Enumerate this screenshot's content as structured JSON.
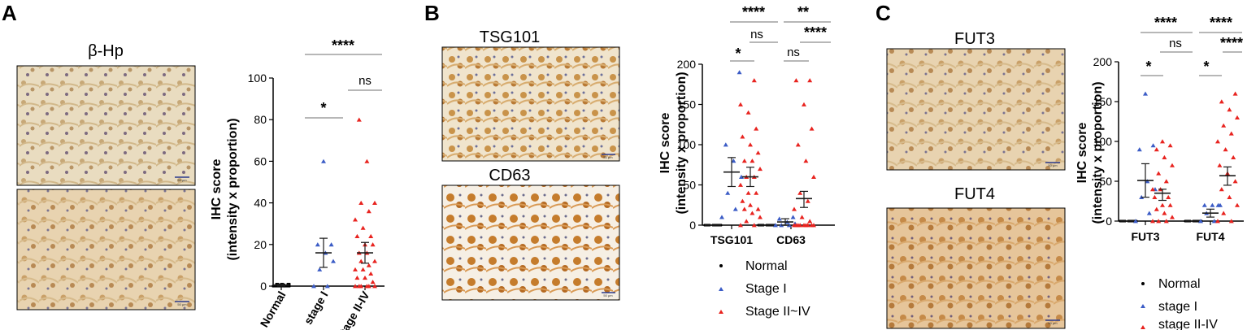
{
  "colors": {
    "normal": "#000000",
    "stage1": "#3b5cc6",
    "stage2": "#e8231f",
    "grid": "#8c8c8c"
  },
  "panels": {
    "A": {
      "letter": "A",
      "images": [
        {
          "title": "β-Hp",
          "scale": "50 μm"
        },
        {
          "title": "",
          "scale": "50 μm"
        }
      ],
      "sig": [
        {
          "label": "*"
        },
        {
          "label": "ns"
        },
        {
          "label": "****"
        }
      ]
    },
    "B": {
      "letter": "B",
      "images": [
        {
          "title": "TSG101",
          "scale": "50 μm"
        },
        {
          "title": "CD63",
          "scale": "50 μm"
        }
      ],
      "legend": [
        "Normal",
        "Stage I",
        "Stage II~IV"
      ],
      "sig": [
        {
          "label": "*"
        },
        {
          "label": "ns"
        },
        {
          "label": "****"
        },
        {
          "label": "ns"
        },
        {
          "label": "****"
        },
        {
          "label": "**"
        }
      ]
    },
    "C": {
      "letter": "C",
      "images": [
        {
          "title": "FUT3",
          "scale": "50 μm"
        },
        {
          "title": "FUT4",
          "scale": "50 μm"
        }
      ],
      "legend": [
        "Normal",
        "stage I",
        "stage II-IV"
      ],
      "sig": [
        {
          "label": "*"
        },
        {
          "label": "ns"
        },
        {
          "label": "****"
        },
        {
          "label": "*"
        },
        {
          "label": "****"
        },
        {
          "label": "****"
        }
      ]
    }
  },
  "chart_data": [
    {
      "type": "scatter",
      "panel": "A",
      "ylabel_line1": "IHC score",
      "ylabel_line2": "(intensity x proportion)",
      "ylim": [
        0,
        100
      ],
      "yticks": [
        0,
        20,
        40,
        60,
        80,
        100
      ],
      "categories": [
        "Normal",
        "stage I",
        "stage II-IV"
      ],
      "series": [
        {
          "category": "Normal",
          "marker": "circle",
          "color": "#000000",
          "mean": 0.5,
          "error": [
            0,
            1
          ],
          "values": [
            0,
            0,
            0,
            0,
            0,
            0,
            0,
            0,
            0,
            0,
            0,
            0,
            0,
            0,
            0,
            0,
            0,
            0,
            0,
            0,
            0,
            0,
            0,
            0,
            1,
            1,
            1,
            1,
            1,
            1
          ]
        },
        {
          "category": "stage I",
          "marker": "triangle",
          "color": "#3b5cc6",
          "mean": 16,
          "error": [
            9,
            23
          ],
          "values": [
            0,
            0,
            8,
            12,
            16,
            20,
            20,
            60
          ]
        },
        {
          "category": "stage II-IV",
          "marker": "triangle",
          "color": "#e8231f",
          "mean": 16,
          "error": [
            11,
            21
          ],
          "values": [
            0,
            0,
            0,
            0,
            0,
            0,
            2,
            4,
            4,
            6,
            8,
            8,
            10,
            12,
            12,
            16,
            16,
            20,
            20,
            24,
            24,
            28,
            32,
            36,
            40,
            40,
            60,
            80
          ]
        }
      ]
    },
    {
      "type": "scatter",
      "panel": "B",
      "ylabel_line1": "IHC score",
      "ylabel_line2": "(intensity x proportion)",
      "ylim": [
        0,
        200
      ],
      "yticks": [
        0,
        50,
        100,
        150,
        200
      ],
      "categories": [
        "TSG101",
        "CD63"
      ],
      "series": [
        {
          "name": "Normal",
          "group": "TSG101",
          "marker": "circle",
          "color": "#000000",
          "mean": 0,
          "error": [
            0,
            0
          ],
          "values": [
            0,
            0,
            0,
            0,
            0,
            0,
            0,
            0,
            0,
            0
          ]
        },
        {
          "name": "Stage I",
          "group": "TSG101",
          "marker": "triangle",
          "color": "#3b5cc6",
          "mean": 66,
          "error": [
            48,
            84
          ],
          "values": [
            10,
            20,
            40,
            60,
            80,
            100,
            190
          ]
        },
        {
          "name": "Stage II~IV",
          "group": "TSG101",
          "marker": "triangle",
          "color": "#e8231f",
          "mean": 60,
          "error": [
            48,
            72
          ],
          "values": [
            0,
            0,
            5,
            10,
            15,
            20,
            20,
            25,
            30,
            40,
            40,
            50,
            60,
            60,
            70,
            80,
            80,
            90,
            100,
            110,
            120,
            140,
            150,
            180
          ]
        },
        {
          "name": "Normal",
          "group": "CD63",
          "marker": "circle",
          "color": "#000000",
          "mean": 0,
          "error": [
            0,
            0
          ],
          "values": [
            0,
            0,
            0,
            0,
            0,
            0,
            0,
            0,
            0,
            0
          ]
        },
        {
          "name": "Stage I",
          "group": "CD63",
          "marker": "triangle",
          "color": "#3b5cc6",
          "mean": 4,
          "error": [
            0,
            8
          ],
          "values": [
            0,
            0,
            0,
            2,
            4,
            8,
            10
          ]
        },
        {
          "name": "Stage II~IV",
          "group": "CD63",
          "marker": "triangle",
          "color": "#e8231f",
          "mean": 33,
          "error": [
            22,
            42
          ],
          "values": [
            0,
            0,
            0,
            0,
            0,
            0,
            0,
            0,
            0,
            5,
            10,
            20,
            30,
            40,
            60,
            80,
            100,
            120,
            150,
            180,
            180
          ]
        }
      ]
    },
    {
      "type": "scatter",
      "panel": "C",
      "ylabel_line1": "IHC score",
      "ylabel_line2": "(intensity x proportion)",
      "ylim": [
        0,
        200
      ],
      "yticks": [
        0,
        50,
        100,
        150,
        200
      ],
      "categories": [
        "FUT3",
        "FUT4"
      ],
      "series": [
        {
          "name": "Normal",
          "group": "FUT3",
          "marker": "circle",
          "color": "#000000",
          "mean": 0,
          "error": [
            0,
            0
          ],
          "values": [
            0,
            0,
            0,
            0,
            0,
            0,
            0,
            0,
            0,
            0
          ]
        },
        {
          "name": "stage I",
          "group": "FUT3",
          "marker": "triangle",
          "color": "#3b5cc6",
          "mean": 51,
          "error": [
            30,
            72
          ],
          "values": [
            0,
            10,
            30,
            40,
            50,
            90,
            95,
            160
          ]
        },
        {
          "name": "stage II-IV",
          "group": "FUT3",
          "marker": "triangle",
          "color": "#e8231f",
          "mean": 35,
          "error": [
            26,
            40
          ],
          "values": [
            0,
            0,
            0,
            5,
            10,
            15,
            20,
            20,
            30,
            30,
            40,
            40,
            50,
            60,
            70,
            80,
            90,
            95,
            100
          ]
        },
        {
          "name": "Normal",
          "group": "FUT4",
          "marker": "circle",
          "color": "#000000",
          "mean": 0,
          "error": [
            0,
            0
          ],
          "values": [
            0,
            0,
            0,
            0,
            0,
            0,
            0,
            0,
            0,
            0
          ]
        },
        {
          "name": "stage I",
          "group": "FUT4",
          "marker": "triangle",
          "color": "#3b5cc6",
          "mean": 10,
          "error": [
            5,
            15
          ],
          "values": [
            0,
            0,
            10,
            20,
            20,
            20,
            20
          ]
        },
        {
          "name": "stage II-IV",
          "group": "FUT4",
          "marker": "triangle",
          "color": "#e8231f",
          "mean": 57,
          "error": [
            45,
            68
          ],
          "values": [
            0,
            0,
            10,
            20,
            30,
            40,
            50,
            60,
            70,
            80,
            90,
            100,
            110,
            120,
            130,
            140,
            150,
            160
          ]
        }
      ]
    }
  ]
}
